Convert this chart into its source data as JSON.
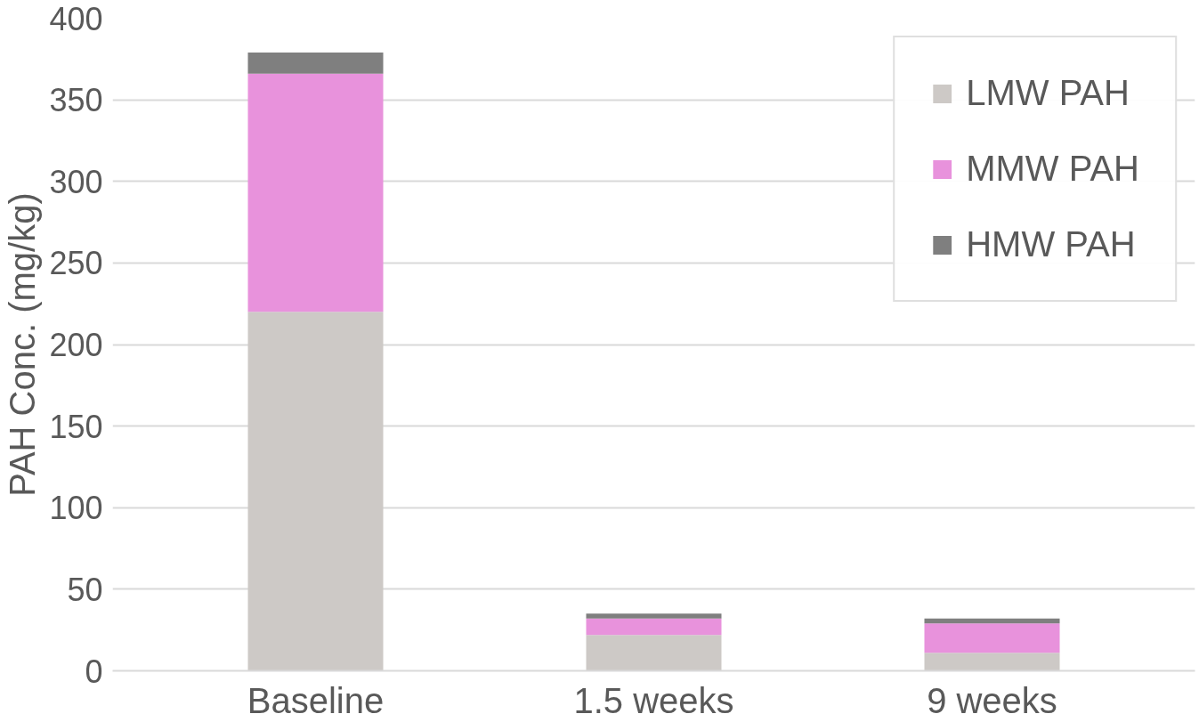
{
  "chart_data": {
    "type": "bar",
    "stacked": true,
    "ylabel": "PAH Conc. (mg/kg)",
    "categories": [
      "Baseline",
      "1.5 weeks",
      "9 weeks"
    ],
    "series": [
      {
        "name": "LMW PAH",
        "color": "#cdc9c6",
        "values": [
          220,
          22,
          11
        ]
      },
      {
        "name": "MMW PAH",
        "color": "#e892dc",
        "values": [
          146,
          10,
          18
        ]
      },
      {
        "name": "HMW PAH",
        "color": "#7f7f7f",
        "values": [
          13,
          3,
          3
        ]
      }
    ],
    "ylim": [
      0,
      400
    ],
    "yticks": [
      0,
      50,
      100,
      150,
      200,
      250,
      300,
      350,
      400
    ],
    "grid": "y",
    "legend": "top right"
  }
}
